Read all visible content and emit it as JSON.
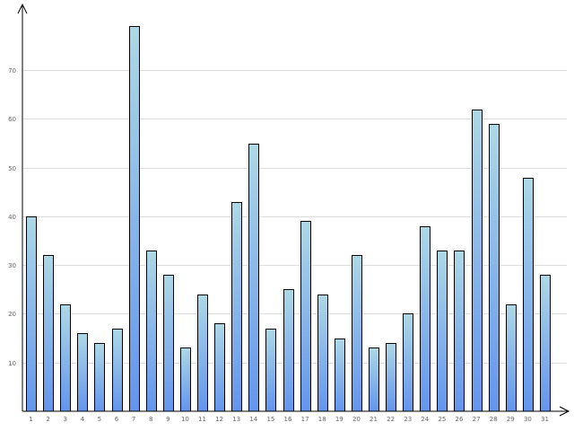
{
  "chart_data": {
    "type": "bar",
    "title": "",
    "xlabel": "",
    "ylabel": "",
    "categories": [
      "1",
      "2",
      "3",
      "4",
      "5",
      "6",
      "7",
      "8",
      "9",
      "10",
      "11",
      "12",
      "13",
      "14",
      "15",
      "16",
      "17",
      "18",
      "19",
      "20",
      "21",
      "22",
      "23",
      "24",
      "25",
      "26",
      "27",
      "28",
      "29",
      "30",
      "31"
    ],
    "values": [
      40,
      32,
      22,
      16,
      14,
      17,
      79,
      33,
      28,
      13,
      24,
      18,
      43,
      55,
      17,
      25,
      39,
      24,
      15,
      32,
      13,
      14,
      20,
      38,
      33,
      33,
      62,
      59,
      22,
      48,
      28
    ],
    "ylim": [
      0,
      82
    ],
    "yticks": [
      10,
      20,
      30,
      40,
      50,
      60,
      70
    ],
    "ytick_labels": [
      "10",
      "20",
      "30",
      "40",
      "50",
      "60",
      "70"
    ],
    "grid": true,
    "legend": "none",
    "colors": {
      "bar_top": "#add8e6",
      "bar_bottom": "#6495ed",
      "bar_stroke": "#000000",
      "grid": "#dddddd",
      "axis": "#000000",
      "tick_text": "#666666"
    }
  }
}
